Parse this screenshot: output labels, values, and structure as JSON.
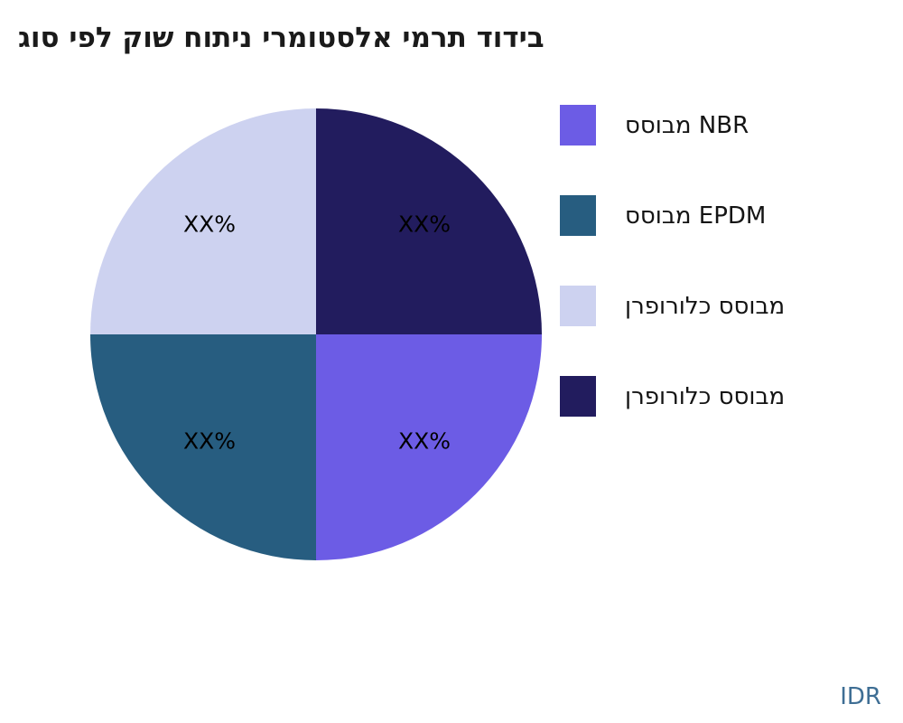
{
  "page": {
    "background": "#ffffff"
  },
  "chart_data": {
    "type": "pie",
    "title": "בידוד תרמי אלסטומרי ניתוח שוק לפי סוג",
    "currency_note": "IDR",
    "legend_position": "right",
    "slices": [
      {
        "name": "מבוסס כלורופרן",
        "position": "top-right",
        "color": "#221c5e",
        "value_pct": 25,
        "value_label": "XX%"
      },
      {
        "name": "מבוסס NBR",
        "position": "bottom-right",
        "color": "#6c5ce5",
        "value_pct": 25,
        "value_label": "XX%"
      },
      {
        "name": "מבוסס EPDM",
        "position": "bottom-left",
        "color": "#275d80",
        "value_pct": 25,
        "value_label": "XX%"
      },
      {
        "name": "מבוסס כלורופרן",
        "position": "top-left",
        "color": "#cdd2f0",
        "value_pct": 25,
        "value_label": "XX%"
      }
    ],
    "legend": [
      {
        "label": "מבוסס NBR",
        "color": "#6c5ce5"
      },
      {
        "label": "מבוסס EPDM",
        "color": "#275d80"
      },
      {
        "label": "מבוסס כלורופרן",
        "color": "#cdd2f0"
      },
      {
        "label": "מבוסס כלורופרן",
        "color": "#221c5e"
      }
    ]
  }
}
